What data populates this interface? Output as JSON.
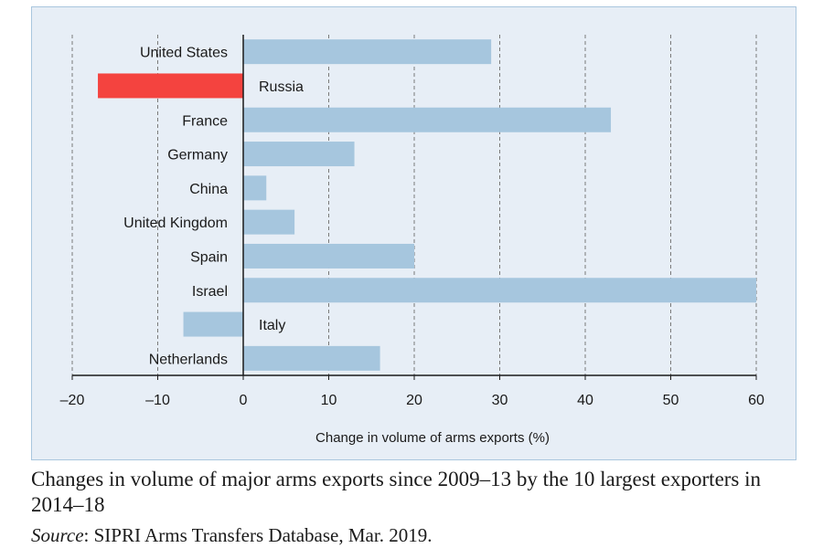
{
  "chart_data": {
    "type": "bar",
    "orientation": "horizontal",
    "categories": [
      "United States",
      "Russia",
      "France",
      "Germany",
      "China",
      "United Kingdom",
      "Spain",
      "Israel",
      "Italy",
      "Netherlands"
    ],
    "values": [
      29,
      -17,
      43,
      13,
      2.7,
      6,
      20,
      60,
      -7,
      16
    ],
    "xlabel": "Change in volume of arms exports (%)",
    "xlim": [
      -20,
      60
    ],
    "xticks": [
      -20,
      -10,
      0,
      10,
      20,
      30,
      40,
      50,
      60
    ],
    "xtick_labels": [
      "–20",
      "–10",
      "0",
      "10",
      "20",
      "30",
      "40",
      "50",
      "60"
    ],
    "grid": "vertical dashed",
    "colors": {
      "default": "#a6c6de",
      "highlight": "#f4433f",
      "background": "#e7eef6",
      "border": "#a9c6de"
    },
    "highlight_category": "Russia"
  },
  "caption": "Changes in volume of major arms exports since 2009–13 by the 10 largest exporters in 2014–18",
  "source": {
    "label": "Source",
    "text": ": SIPRI Arms Transfers Database, Mar. 2019."
  }
}
